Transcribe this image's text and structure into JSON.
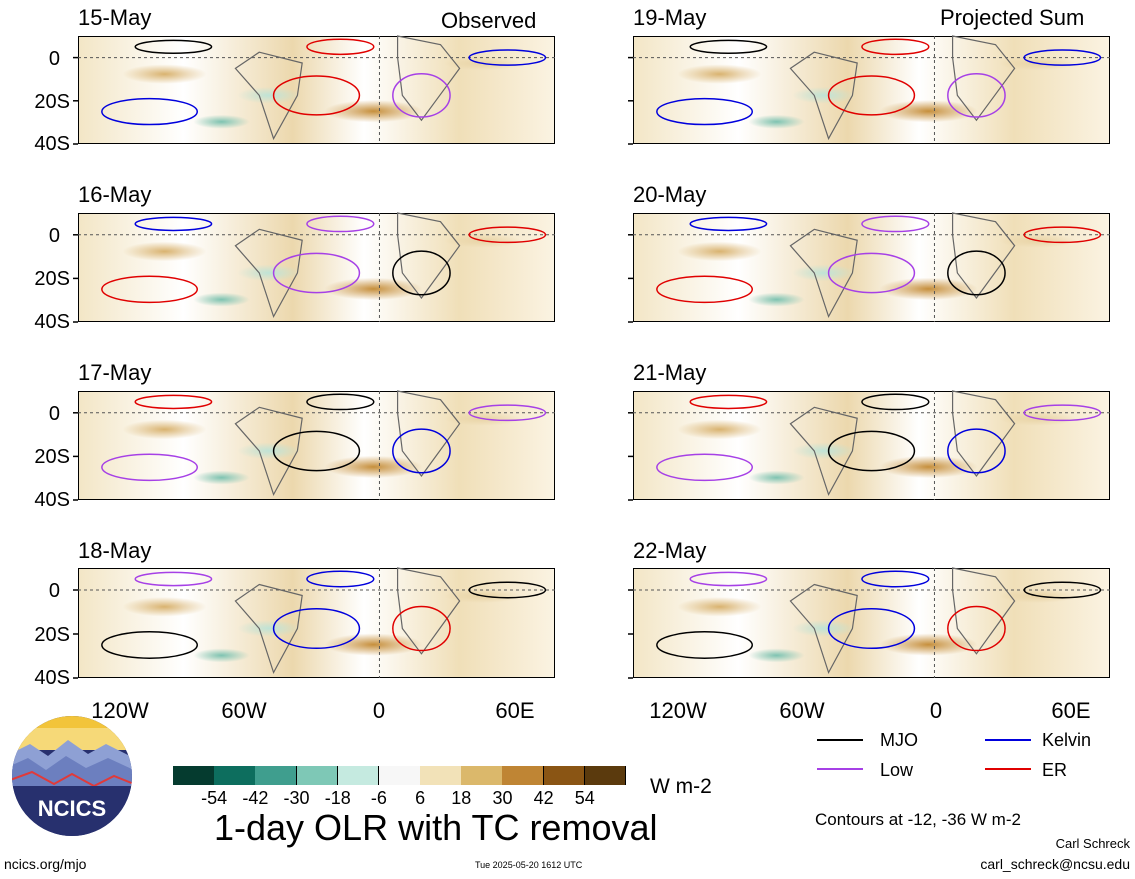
{
  "observed_label": "Observed",
  "projected_label": "Projected Sum",
  "panels_left": [
    {
      "date": "15-May"
    },
    {
      "date": "16-May"
    },
    {
      "date": "17-May"
    },
    {
      "date": "18-May"
    }
  ],
  "panels_right": [
    {
      "date": "19-May"
    },
    {
      "date": "20-May"
    },
    {
      "date": "21-May"
    },
    {
      "date": "22-May"
    }
  ],
  "lat_labels": [
    "0",
    "20S",
    "40S"
  ],
  "lon_labels": [
    "120W",
    "60W",
    "0",
    "60E"
  ],
  "legend": {
    "mjo": {
      "label": "MJO",
      "color": "#000000"
    },
    "kelvin": {
      "label": "Kelvin",
      "color": "#0000dd"
    },
    "low": {
      "label": "Low",
      "color": "#a640e6"
    },
    "er": {
      "label": "ER",
      "color": "#e00000"
    }
  },
  "colorbar": {
    "ticks": [
      "-54",
      "-42",
      "-30",
      "-18",
      "-6",
      "6",
      "18",
      "30",
      "42",
      "54"
    ],
    "colors": [
      "#053b2f",
      "#0d6e5e",
      "#3f9e8e",
      "#7ec8b6",
      "#c5eae0",
      "#f7f7f7",
      "#f2e2b8",
      "#dbb86b",
      "#bf8534",
      "#8a5514",
      "#5b3a0d"
    ],
    "units": "W m-2"
  },
  "title": "1-day OLR with TC removal",
  "contours_note": "Contours at -12, -36 W m-2",
  "author": "Carl Schreck",
  "email": "carl_schreck@ncsu.edu",
  "website": "ncics.org/mjo",
  "timestamp": "Tue 2025-05-20 1612 UTC",
  "logo_text": "NCICS"
}
